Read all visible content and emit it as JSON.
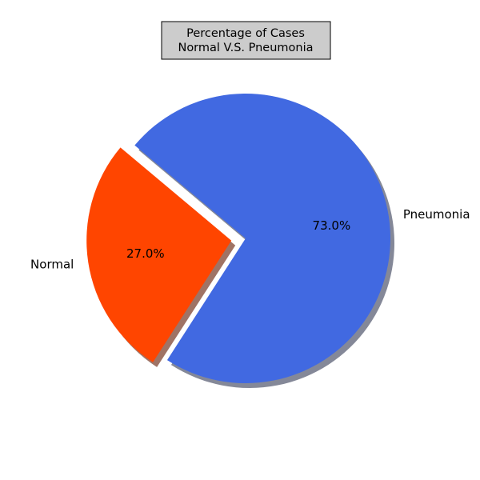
{
  "chart_data": {
    "type": "pie",
    "title": [
      "Percentage of Cases",
      "Normal V.S. Pneumonia"
    ],
    "slices": [
      {
        "label": "Normal",
        "value": 27.0,
        "pct_label": "27.0%",
        "color": "#ff4500",
        "explode": true
      },
      {
        "label": "Pneumonia",
        "value": 73.0,
        "pct_label": "73.0%",
        "color": "#4169e1",
        "explode": false
      }
    ],
    "shadow": true,
    "title_box": {
      "background": "#cccccc",
      "border": "#000000"
    }
  }
}
